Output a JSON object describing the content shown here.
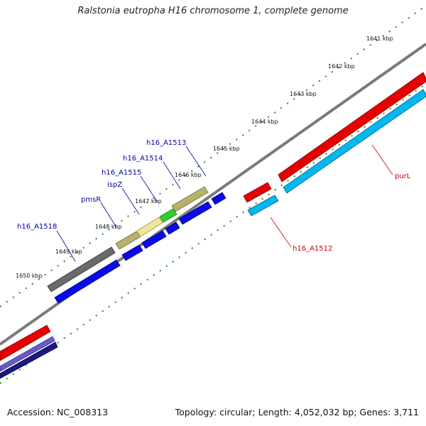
{
  "title": "Ralstonia eutropha H16 chromosome 1, complete genome",
  "footer": {
    "accession": "Accession: NC_008313",
    "topology": "Topology: circular; Length: 4,052,032 bp; Genes: 3,711"
  },
  "colors": {
    "forward_gene": "#0a0ae6",
    "forward_gene_edge": "#000080",
    "reverse_gene": "#e60000",
    "reverse_gene_alt": "#00b8f0",
    "backbone": "#808080",
    "tick": "#2b8a2b",
    "label_blue": "#0000aa",
    "label_red": "#cc0000"
  },
  "tick_labels": [
    "1641 kbp",
    "1642 kbp",
    "1643 kbp",
    "1644 kbp",
    "1645 kbp",
    "1646 kbp",
    "1647 kbp",
    "1648 kbp",
    "1649 kbp",
    "1650 kbp"
  ],
  "gene_labels": {
    "h16_A1513": "h16_A1513",
    "h16_A1514": "h16_A1514",
    "h16_A1515": "h16_A1515",
    "ispZ": "ispZ",
    "pmsR": "pmsR",
    "h16_A1518": "h16_A1518",
    "purL": "purL",
    "h16_A1512": "h16_A1512"
  }
}
